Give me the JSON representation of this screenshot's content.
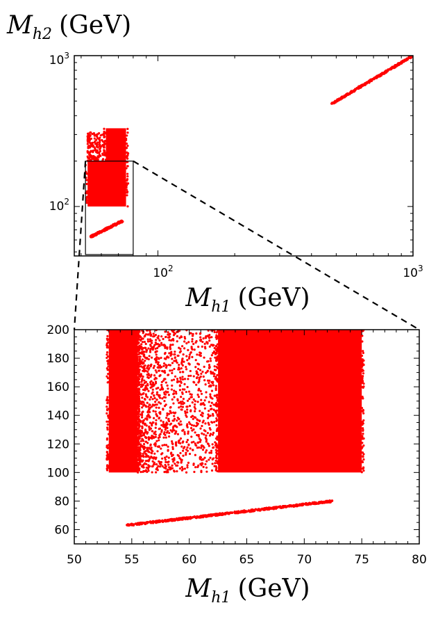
{
  "chart_data": [
    {
      "type": "scatter",
      "scale": "log-log",
      "ylabel": {
        "symbol": "M",
        "sub": "h2",
        "unit": "(GeV)"
      },
      "xlabel": {
        "symbol": "M",
        "sub": "h1",
        "unit": "(GeV)"
      },
      "xlim": [
        47,
        1000
      ],
      "ylim": [
        47,
        1000
      ],
      "xticks": [
        {
          "value": 100,
          "base": "10",
          "exp": "2"
        },
        {
          "value": 1000,
          "base": "10",
          "exp": "3"
        }
      ],
      "yticks": [
        {
          "value": 100,
          "base": "10",
          "exp": "2"
        },
        {
          "value": 1000,
          "base": "10",
          "exp": "3"
        }
      ],
      "color": "#ff0000",
      "regions": [
        {
          "kind": "filled-band",
          "x": [
            53,
            75
          ],
          "y": [
            100,
            200
          ]
        },
        {
          "kind": "sparse-band",
          "x": [
            53,
            62
          ],
          "y": [
            200,
            310
          ]
        },
        {
          "kind": "filled-band",
          "x": [
            62.5,
            75
          ],
          "y": [
            200,
            330
          ]
        },
        {
          "kind": "line",
          "x": [
            54.5,
            72.5
          ],
          "y": [
            63,
            80
          ]
        },
        {
          "kind": "line",
          "x": [
            480,
            1000
          ],
          "y": [
            480,
            1000
          ]
        }
      ],
      "zoom_box": {
        "x": [
          52,
          80
        ],
        "y": [
          48,
          200
        ]
      },
      "grid": false
    },
    {
      "type": "scatter",
      "xlabel": {
        "symbol": "M",
        "sub": "h1",
        "unit": "(GeV)"
      },
      "xlim": [
        50,
        80
      ],
      "ylim": [
        50,
        200
      ],
      "xticks": [
        50,
        55,
        60,
        65,
        70,
        75,
        80
      ],
      "yticks": [
        60,
        80,
        100,
        120,
        140,
        160,
        180,
        200
      ],
      "color": "#ff0000",
      "regions": [
        {
          "kind": "filled-band",
          "x": [
            53,
            55.5
          ],
          "y": [
            100,
            200
          ]
        },
        {
          "kind": "sparse-band",
          "x": [
            55.5,
            62.5
          ],
          "y": [
            100,
            200
          ]
        },
        {
          "kind": "filled-band",
          "x": [
            62.5,
            75
          ],
          "y": [
            100,
            200
          ]
        },
        {
          "kind": "line",
          "x": [
            54.5,
            72.5
          ],
          "y": [
            63,
            80
          ]
        }
      ],
      "grid": false
    }
  ]
}
